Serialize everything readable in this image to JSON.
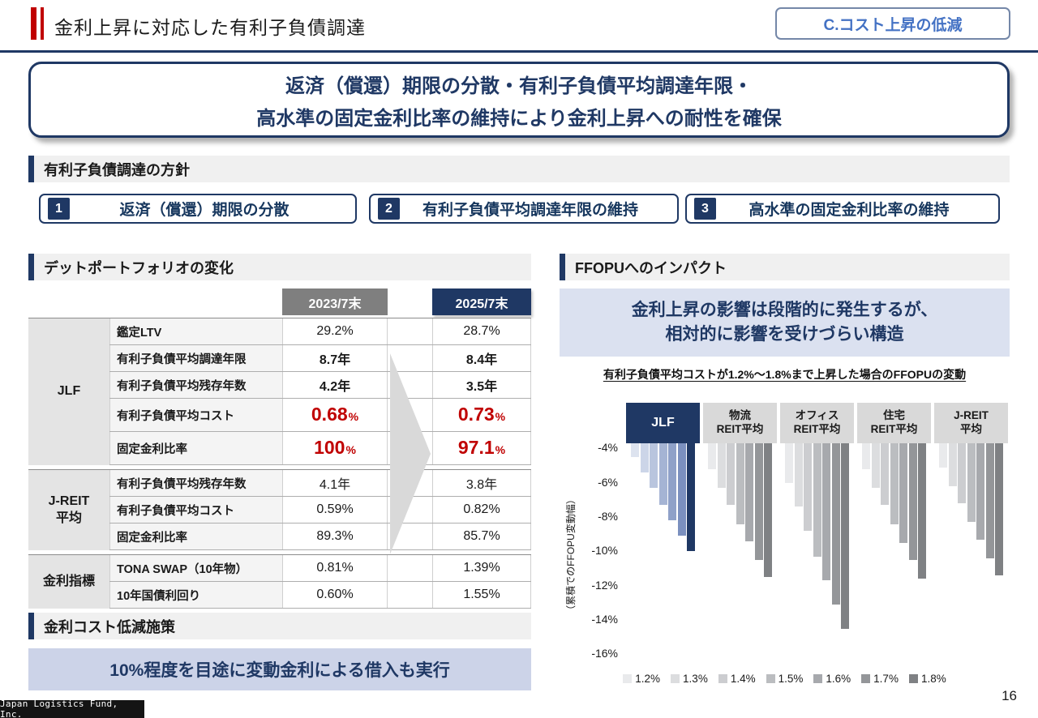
{
  "header": {
    "title": "金利上昇に対応した有利子負債調達",
    "badge": "C.コスト上昇の低減"
  },
  "key_message": {
    "line1": "返済（償還）期限の分散・有利子負債平均調達年限・",
    "line2": "高水準の固定金利比率の維持により金利上昇への耐性を確保"
  },
  "policy": {
    "heading": "有利子負債調達の方針",
    "items": [
      {
        "num": "1",
        "label": "返済（償還）期限の分散"
      },
      {
        "num": "2",
        "label": "有利子負債平均調達年限の維持"
      },
      {
        "num": "3",
        "label": "高水準の固定金利比率の維持"
      }
    ]
  },
  "debt_table": {
    "heading": "デットポートフォリオの変化",
    "columns": [
      "2023/7末",
      "2025/7末"
    ],
    "groups": [
      {
        "name": "JLF",
        "rows": [
          {
            "label": "鑑定LTV",
            "v1": "29.2%",
            "v2": "28.7%",
            "style": "normal"
          },
          {
            "label": "有利子負債平均調達年限",
            "v1": "8.7年",
            "v2": "8.4年",
            "style": "bold"
          },
          {
            "label": "有利子負債平均残存年数",
            "v1": "4.2年",
            "v2": "3.5年",
            "style": "bold"
          },
          {
            "label": "有利子負債平均コスト",
            "v1": "0.68",
            "v1_unit": "%",
            "v2": "0.73",
            "v2_unit": "%",
            "style": "red"
          },
          {
            "label": "固定金利比率",
            "v1": "100",
            "v1_unit": "%",
            "v2": "97.1",
            "v2_unit": "%",
            "style": "red"
          }
        ]
      },
      {
        "name": "J-REIT\n平均",
        "rows": [
          {
            "label": "有利子負債平均残存年数",
            "v1": "4.1年",
            "v2": "3.8年",
            "style": "normal"
          },
          {
            "label": "有利子負債平均コスト",
            "v1": "0.59%",
            "v2": "0.82%",
            "style": "normal"
          },
          {
            "label": "固定金利比率",
            "v1": "89.3%",
            "v2": "85.7%",
            "style": "normal"
          }
        ]
      },
      {
        "name": "金利指標",
        "rows": [
          {
            "label": "TONA SWAP（10年物）",
            "v1": "0.81%",
            "v2": "1.39%",
            "style": "normal"
          },
          {
            "label": "10年国債利回り",
            "v1": "0.60%",
            "v2": "1.55%",
            "style": "normal"
          }
        ]
      }
    ]
  },
  "cost_reduction": {
    "heading": "金利コスト低減施策",
    "message": "10%程度を目途に変動金利による借入も実行"
  },
  "impact": {
    "heading": "FFOPUへのインパクト",
    "message_line1": "金利上昇の影響は段階的に発生するが、",
    "message_line2": "相対的に影響を受けづらい構造"
  },
  "chart_data": {
    "type": "bar",
    "title": "有利子負債平均コストが1.2%～1.8%まで上昇した場合のFFOPUの変動",
    "ylabel": "（累積でのFFOPU変動幅）",
    "yticks": [
      -4,
      -6,
      -8,
      -10,
      -12,
      -14,
      -16
    ],
    "ylim": [
      -16.55,
      -3.7
    ],
    "grid": false,
    "legend_position": "bottom",
    "categories": [
      "JLF",
      "物流REIT平均",
      "オフィスREIT平均",
      "住宅REIT平均",
      "J-REIT平均"
    ],
    "category_lines": [
      [
        "JLF"
      ],
      [
        "物流",
        "REIT平均"
      ],
      [
        "オフィス",
        "REIT平均"
      ],
      [
        "住宅",
        "REIT平均"
      ],
      [
        "J-REIT",
        "平均"
      ]
    ],
    "highlight_category": "JLF",
    "series": [
      {
        "name": "1.2%",
        "color": "#e9eaec",
        "color_highlight": "#dde3ef",
        "values": [
          -4.5,
          -5.2,
          -6.0,
          -5.2,
          -5.1
        ]
      },
      {
        "name": "1.3%",
        "color": "#dcdddf",
        "color_highlight": "#ccd5e8",
        "values": [
          -5.4,
          -6.3,
          -7.4,
          -6.3,
          -6.2
        ]
      },
      {
        "name": "1.4%",
        "color": "#cccdd0",
        "color_highlight": "#b9c5de",
        "values": [
          -6.3,
          -7.3,
          -8.8,
          -7.3,
          -7.2
        ]
      },
      {
        "name": "1.5%",
        "color": "#bbbdc0",
        "color_highlight": "#a5b4d4",
        "values": [
          -7.3,
          -8.4,
          -10.3,
          -8.4,
          -8.3
        ]
      },
      {
        "name": "1.6%",
        "color": "#a7a9ad",
        "color_highlight": "#8fa1c8",
        "values": [
          -8.2,
          -9.4,
          -11.7,
          -9.5,
          -9.3
        ]
      },
      {
        "name": "1.7%",
        "color": "#949699",
        "color_highlight": "#7b90bf",
        "values": [
          -9.1,
          -10.5,
          -13.1,
          -10.5,
          -10.4
        ]
      },
      {
        "name": "1.8%",
        "color": "#7f8184",
        "color_highlight": "#1f3864",
        "values": [
          -10.0,
          -11.5,
          -14.5,
          -11.6,
          -11.4
        ]
      }
    ]
  },
  "footer": {
    "logo": "Japan Logistics Fund, Inc.",
    "page": "16"
  },
  "colors": {
    "navy": "#1f3864",
    "red": "#c00000",
    "accent_blue": "#4472c4"
  }
}
